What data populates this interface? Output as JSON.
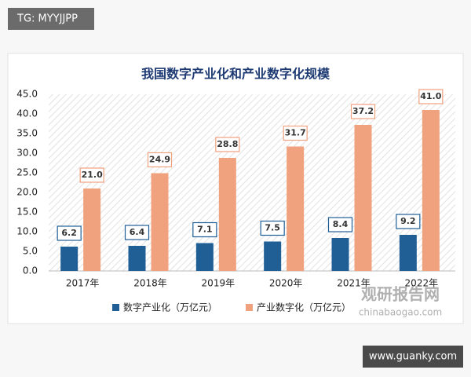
{
  "tag": "TG: MYYJJPP",
  "site": "www.guanky.com",
  "watermark": {
    "name": "观研报告网",
    "url": "chinabaogao.com"
  },
  "chart_data": {
    "type": "bar",
    "title": "我国数字产业化和产业数字化规模",
    "categories": [
      "2017年",
      "2018年",
      "2019年",
      "2020年",
      "2021年",
      "2022年"
    ],
    "series": [
      {
        "name": "数字产业化（万亿元）",
        "color": "#1f5f96",
        "values": [
          6.2,
          6.4,
          7.1,
          7.5,
          8.4,
          9.2
        ]
      },
      {
        "name": "产业数字化（万亿元）",
        "color": "#f0a17e",
        "values": [
          21.0,
          24.9,
          28.8,
          31.7,
          37.2,
          41.0
        ],
        "value_labels": [
          "21.0",
          "24.9",
          "28.8",
          "31.7",
          "37.2",
          "41.0"
        ]
      }
    ],
    "ylim": [
      0,
      45
    ],
    "yticks": [
      {
        "value": 0,
        "label": "0.0"
      },
      {
        "value": 5,
        "label": "5.0"
      },
      {
        "value": 10,
        "label": "10.0"
      },
      {
        "value": 15,
        "label": "15.0"
      },
      {
        "value": 20,
        "label": "20.0"
      },
      {
        "value": 25,
        "label": "25.0"
      },
      {
        "value": 30,
        "label": "30.0"
      },
      {
        "value": 35,
        "label": "35.0"
      },
      {
        "value": 40,
        "label": "40.0"
      },
      {
        "value": 45,
        "label": "45.0"
      }
    ],
    "grid": false,
    "legend": "bottom"
  }
}
